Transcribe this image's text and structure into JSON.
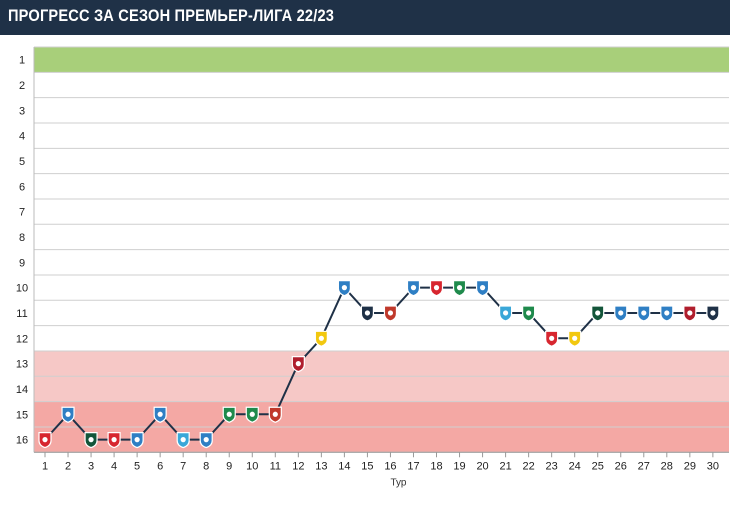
{
  "title": "ПРОГРЕСС ЗА СЕЗОН ПРЕМЬЕР-ЛИГА 22/23",
  "chart_data": {
    "type": "line",
    "xlabel": "Тур",
    "ylabel": "",
    "x": [
      1,
      2,
      3,
      4,
      5,
      6,
      7,
      8,
      9,
      10,
      11,
      12,
      13,
      14,
      15,
      16,
      17,
      18,
      19,
      20,
      21,
      22,
      23,
      24,
      25,
      26,
      27,
      28,
      29,
      30
    ],
    "y_ticks": [
      1,
      2,
      3,
      4,
      5,
      6,
      7,
      8,
      9,
      10,
      11,
      12,
      13,
      14,
      15,
      16
    ],
    "ylim": [
      1,
      16
    ],
    "y_inverted": true,
    "series": [
      {
        "values": [
          16,
          15,
          16,
          16,
          16,
          15,
          16,
          16,
          15,
          15,
          15,
          13,
          12,
          10,
          11,
          11,
          10,
          10,
          10,
          10,
          11,
          11,
          12,
          12,
          11,
          11,
          11,
          11,
          11,
          11
        ],
        "color": "#1f3147"
      }
    ],
    "zones": [
      {
        "from": 1,
        "to": 1,
        "color": "#a8cf7a"
      },
      {
        "from": 13,
        "to": 14,
        "color": "#f6c8c6"
      },
      {
        "from": 15,
        "to": 16,
        "color": "#f4a8a4"
      }
    ],
    "marker_colors": [
      "#d7262f",
      "#2f7fc4",
      "#13553a",
      "#d7262f",
      "#2f7fc4",
      "#2f7fc4",
      "#3aa7d8",
      "#2f7fc4",
      "#1f8a4c",
      "#1f8a4c",
      "#c0392b",
      "#b01e2d",
      "#f2c80f",
      "#2f7fc4",
      "#1f3147",
      "#c0392b",
      "#2f7fc4",
      "#d7262f",
      "#1f8a4c",
      "#2f7fc4",
      "#3aa7d8",
      "#1f8a4c",
      "#d7262f",
      "#f2c80f",
      "#13553a",
      "#2f7fc4",
      "#2f7fc4",
      "#2f7fc4",
      "#b01e2d",
      "#1f3147"
    ],
    "grid": true
  }
}
